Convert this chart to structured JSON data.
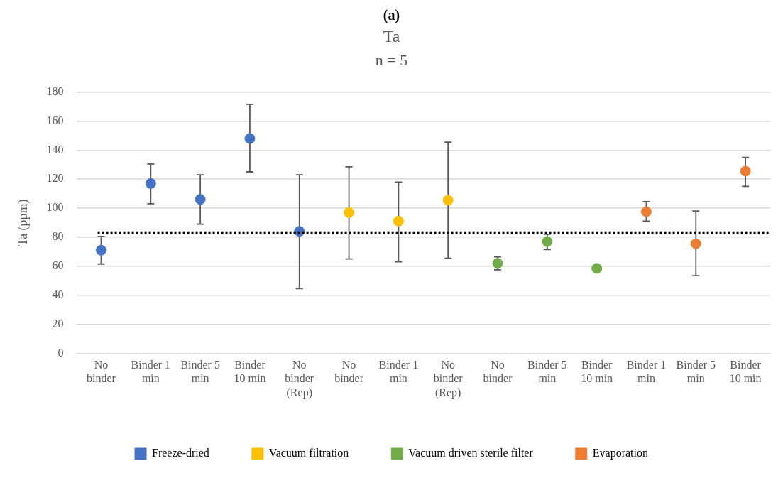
{
  "chart_data": {
    "type": "scatter",
    "title": "(a)",
    "subtitle": "Ta",
    "annotations": [
      "n = 5"
    ],
    "ylabel": "Ta (ppm)",
    "categories": [
      "No binder",
      "Binder 1 min",
      "Binder 5 min",
      "Binder 10 min",
      "No binder (Rep)",
      "No binder",
      "Binder 1 min",
      "No binder (Rep)",
      "No binder",
      "Binder 5 min",
      "Binder 10 min",
      "Binder 1 min",
      "Binder 5 min",
      "Binder 10 min"
    ],
    "series": [
      {
        "name": "Freeze-dried",
        "color": "#4472c4",
        "values": [
          71,
          117,
          106,
          148,
          84,
          null,
          null,
          null,
          null,
          null,
          null,
          null,
          null,
          null
        ],
        "errors": [
          [
            61.5,
            80.5
          ],
          [
            103,
            130.5
          ],
          [
            89,
            123
          ],
          [
            125,
            171.5
          ],
          [
            44.5,
            123
          ],
          null,
          null,
          null,
          null,
          null,
          null,
          null,
          null,
          null
        ]
      },
      {
        "name": "Vacuum filtration",
        "color": "#ffc000",
        "values": [
          null,
          null,
          null,
          null,
          null,
          97,
          91,
          105.5,
          null,
          null,
          null,
          null,
          null,
          null
        ],
        "errors": [
          null,
          null,
          null,
          null,
          null,
          [
            65,
            128.5
          ],
          [
            63,
            118
          ],
          [
            65.5,
            145.5
          ],
          null,
          null,
          null,
          null,
          null,
          null
        ]
      },
      {
        "name": "Vacuum driven sterile filter",
        "color": "#70ad47",
        "values": [
          null,
          null,
          null,
          null,
          null,
          null,
          null,
          null,
          62,
          77,
          58.5,
          null,
          null,
          null
        ],
        "errors": [
          null,
          null,
          null,
          null,
          null,
          null,
          null,
          null,
          [
            57.5,
            66.5
          ],
          [
            71.5,
            82
          ],
          null,
          null,
          null,
          null
        ]
      },
      {
        "name": "Evaporation",
        "color": "#ed7d31",
        "values": [
          null,
          null,
          null,
          null,
          null,
          null,
          null,
          null,
          null,
          null,
          null,
          97.5,
          75.5,
          125.5
        ],
        "errors": [
          null,
          null,
          null,
          null,
          null,
          null,
          null,
          null,
          null,
          null,
          null,
          [
            91,
            104.5
          ],
          [
            53.5,
            98
          ],
          [
            115,
            135
          ]
        ]
      }
    ],
    "ylim": [
      0,
      180
    ],
    "yticks": [
      0,
      20,
      40,
      60,
      80,
      100,
      120,
      140,
      160,
      180
    ],
    "grid": "y",
    "legend": "bottom",
    "marker": "circle",
    "ref_lines": [
      {
        "axis": "y",
        "value": 83,
        "color": "#000000",
        "line_style": "dotted"
      }
    ]
  }
}
